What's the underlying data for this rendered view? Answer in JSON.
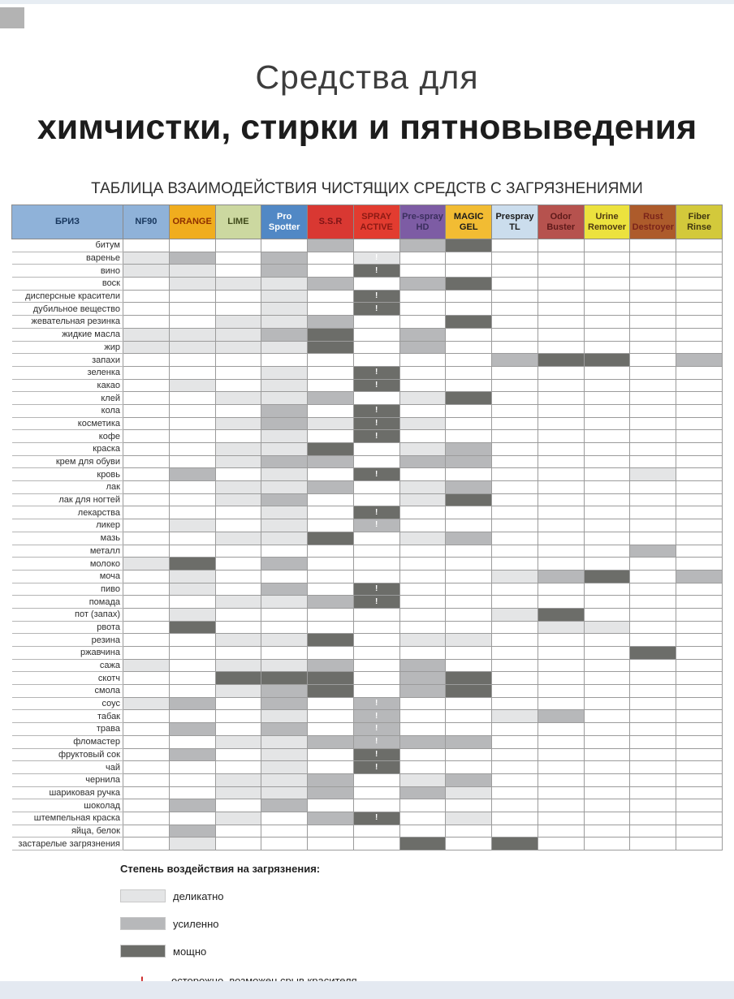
{
  "title": {
    "line1": "Средства для",
    "line2": "химчистки, стирки и пятновыведения"
  },
  "subtitle": "ТАБЛИЦА ВЗАИМОДЕЙСТВИЯ ЧИСТЯЩИХ СРЕДСТВ С ЗАГРЯЗНЕНИЯМИ",
  "table": {
    "row_header_label": "БРИЗ",
    "row_header_style": {
      "bg": "#8fb2d9",
      "fg": "#17365d"
    },
    "columns": [
      {
        "label": "NF90",
        "bg": "#8fb2d9",
        "fg": "#17365d"
      },
      {
        "label": "ORANGE",
        "bg": "#f0ad1e",
        "fg": "#8e2f00"
      },
      {
        "label": "LIME",
        "bg": "#ccd8a0",
        "fg": "#3f4a1a"
      },
      {
        "label": "Pro Spotter",
        "bg": "#5188c5",
        "fg": "#ffffff"
      },
      {
        "label": "S.S.R",
        "bg": "#d93832",
        "fg": "#7e1416"
      },
      {
        "label": "SPRAY ACTIVE",
        "bg": "#e23c30",
        "fg": "#8c1a14"
      },
      {
        "label": "Pre-spray HD",
        "bg": "#7d5ca4",
        "fg": "#3b2f5e"
      },
      {
        "label": "MAGIC GEL",
        "bg": "#f2bc33",
        "fg": "#1a1a1a"
      },
      {
        "label": "Prespray TL",
        "bg": "#cbdded",
        "fg": "#1a1a1a"
      },
      {
        "label": "Odor Buster",
        "bg": "#b6524e",
        "fg": "#5e1a1a"
      },
      {
        "label": "Urine Remover",
        "bg": "#ece23e",
        "fg": "#4f3a12"
      },
      {
        "label": "Rust Destroyer",
        "bg": "#ad5b2b",
        "fg": "#7a241a"
      },
      {
        "label": "Fiber Rinse",
        "bg": "#d3c93b",
        "fg": "#403710"
      }
    ],
    "level_colors": {
      "0": "#ffffff",
      "1": "#e4e5e6",
      "2": "#b7b8ba",
      "3": "#6c6d69"
    },
    "warn_mark": "!",
    "rows": [
      {
        "label": "битум",
        "cells": [
          "0",
          "0",
          "0",
          "0",
          "2",
          "0",
          "2",
          "3",
          "0",
          "0",
          "0",
          "0",
          "0"
        ]
      },
      {
        "label": "варенье",
        "cells": [
          "1",
          "2",
          "0",
          "2",
          "0",
          "1!",
          "0",
          "0",
          "0",
          "0",
          "0",
          "0",
          "0"
        ]
      },
      {
        "label": "вино",
        "cells": [
          "1",
          "1",
          "0",
          "2",
          "0",
          "3!",
          "0",
          "0",
          "0",
          "0",
          "0",
          "0",
          "0"
        ]
      },
      {
        "label": "воск",
        "cells": [
          "0",
          "1",
          "1",
          "1",
          "2",
          "0",
          "2",
          "3",
          "0",
          "0",
          "0",
          "0",
          "0"
        ]
      },
      {
        "label": "дисперсные красители",
        "cells": [
          "0",
          "0",
          "0",
          "1",
          "0",
          "3!",
          "0",
          "0",
          "0",
          "0",
          "0",
          "0",
          "0"
        ]
      },
      {
        "label": "дубильное вещество",
        "cells": [
          "0",
          "0",
          "0",
          "1",
          "0",
          "3!",
          "0",
          "0",
          "0",
          "0",
          "0",
          "0",
          "0"
        ]
      },
      {
        "label": "жевательная резинка",
        "cells": [
          "0",
          "0",
          "1",
          "1",
          "2",
          "0",
          "0",
          "3",
          "0",
          "0",
          "0",
          "0",
          "0"
        ]
      },
      {
        "label": "жидкие масла",
        "cells": [
          "1",
          "1",
          "1",
          "2",
          "3",
          "0",
          "2",
          "0",
          "0",
          "0",
          "0",
          "0",
          "0"
        ]
      },
      {
        "label": "жир",
        "cells": [
          "1",
          "1",
          "1",
          "1",
          "3",
          "0",
          "2",
          "0",
          "0",
          "0",
          "0",
          "0",
          "0"
        ]
      },
      {
        "label": "запахи",
        "cells": [
          "0",
          "0",
          "0",
          "0",
          "0",
          "0",
          "0",
          "0",
          "2",
          "3",
          "3",
          "0",
          "2"
        ]
      },
      {
        "label": "зеленка",
        "cells": [
          "0",
          "0",
          "0",
          "1",
          "0",
          "3!",
          "0",
          "0",
          "0",
          "0",
          "0",
          "0",
          "0"
        ]
      },
      {
        "label": "какао",
        "cells": [
          "0",
          "1",
          "0",
          "1",
          "0",
          "3!",
          "0",
          "0",
          "0",
          "0",
          "0",
          "0",
          "0"
        ]
      },
      {
        "label": "клей",
        "cells": [
          "0",
          "0",
          "1",
          "1",
          "2",
          "0",
          "1",
          "3",
          "0",
          "0",
          "0",
          "0",
          "0"
        ]
      },
      {
        "label": "кола",
        "cells": [
          "0",
          "0",
          "0",
          "2",
          "0",
          "3!",
          "0",
          "0",
          "0",
          "0",
          "0",
          "0",
          "0"
        ]
      },
      {
        "label": "косметика",
        "cells": [
          "0",
          "0",
          "1",
          "2",
          "1",
          "3!",
          "1",
          "0",
          "0",
          "0",
          "0",
          "0",
          "0"
        ]
      },
      {
        "label": "кофе",
        "cells": [
          "0",
          "0",
          "0",
          "1",
          "0",
          "3!",
          "0",
          "0",
          "0",
          "0",
          "0",
          "0",
          "0"
        ]
      },
      {
        "label": "краска",
        "cells": [
          "0",
          "0",
          "1",
          "1",
          "3",
          "0",
          "1",
          "2",
          "0",
          "0",
          "0",
          "0",
          "0"
        ]
      },
      {
        "label": "крем для обуви",
        "cells": [
          "0",
          "0",
          "1",
          "2",
          "2",
          "0",
          "2",
          "2",
          "0",
          "0",
          "0",
          "0",
          "0"
        ]
      },
      {
        "label": "кровь",
        "cells": [
          "0",
          "2",
          "0",
          "1",
          "0",
          "3!",
          "0",
          "0",
          "0",
          "0",
          "0",
          "1",
          "0"
        ]
      },
      {
        "label": "лак",
        "cells": [
          "0",
          "0",
          "1",
          "1",
          "2",
          "0",
          "1",
          "2",
          "0",
          "0",
          "0",
          "0",
          "0"
        ]
      },
      {
        "label": "лак для ногтей",
        "cells": [
          "0",
          "0",
          "1",
          "2",
          "0",
          "0",
          "1",
          "3",
          "0",
          "0",
          "0",
          "0",
          "0"
        ]
      },
      {
        "label": "лекарства",
        "cells": [
          "0",
          "0",
          "0",
          "1",
          "0",
          "3!",
          "0",
          "0",
          "0",
          "0",
          "0",
          "0",
          "0"
        ]
      },
      {
        "label": "ликер",
        "cells": [
          "0",
          "1",
          "0",
          "1",
          "0",
          "2!",
          "0",
          "0",
          "0",
          "0",
          "0",
          "0",
          "0"
        ]
      },
      {
        "label": "мазь",
        "cells": [
          "0",
          "0",
          "1",
          "1",
          "3",
          "0",
          "1",
          "2",
          "0",
          "0",
          "0",
          "0",
          "0"
        ]
      },
      {
        "label": "металл",
        "cells": [
          "0",
          "0",
          "0",
          "0",
          "0",
          "0",
          "0",
          "0",
          "0",
          "0",
          "0",
          "2",
          "0"
        ]
      },
      {
        "label": "молоко",
        "cells": [
          "1",
          "3",
          "0",
          "2",
          "0",
          "0",
          "0",
          "0",
          "0",
          "0",
          "0",
          "0",
          "0"
        ]
      },
      {
        "label": "моча",
        "cells": [
          "0",
          "1",
          "0",
          "0",
          "0",
          "0",
          "0",
          "0",
          "1",
          "2",
          "3",
          "0",
          "2"
        ]
      },
      {
        "label": "пиво",
        "cells": [
          "0",
          "1",
          "0",
          "2",
          "0",
          "3!",
          "0",
          "0",
          "0",
          "0",
          "0",
          "0",
          "0"
        ]
      },
      {
        "label": "помада",
        "cells": [
          "0",
          "0",
          "1",
          "1",
          "2",
          "3!",
          "0",
          "0",
          "0",
          "0",
          "0",
          "0",
          "0"
        ]
      },
      {
        "label": "пот (запах)",
        "cells": [
          "0",
          "1",
          "0",
          "0",
          "0",
          "0",
          "0",
          "0",
          "1",
          "3",
          "0",
          "0",
          "0"
        ]
      },
      {
        "label": "рвота",
        "cells": [
          "0",
          "3",
          "0",
          "0",
          "0",
          "0",
          "0",
          "0",
          "0",
          "1",
          "1",
          "0",
          "0"
        ]
      },
      {
        "label": "резина",
        "cells": [
          "0",
          "0",
          "1",
          "1",
          "3",
          "0",
          "1",
          "1",
          "0",
          "0",
          "0",
          "0",
          "0"
        ]
      },
      {
        "label": "ржавчина",
        "cells": [
          "0",
          "0",
          "0",
          "0",
          "0",
          "0",
          "0",
          "0",
          "0",
          "0",
          "0",
          "3",
          "0"
        ]
      },
      {
        "label": "сажа",
        "cells": [
          "1",
          "0",
          "1",
          "1",
          "2",
          "0",
          "2",
          "0",
          "0",
          "0",
          "0",
          "0",
          "0"
        ]
      },
      {
        "label": "скотч",
        "cells": [
          "0",
          "0",
          "3",
          "3",
          "3",
          "0",
          "2",
          "3",
          "0",
          "0",
          "0",
          "0",
          "0"
        ]
      },
      {
        "label": "смола",
        "cells": [
          "0",
          "0",
          "1",
          "2",
          "3",
          "0",
          "2",
          "3",
          "0",
          "0",
          "0",
          "0",
          "0"
        ]
      },
      {
        "label": "соус",
        "cells": [
          "1",
          "2",
          "0",
          "2",
          "0",
          "2!",
          "0",
          "0",
          "0",
          "0",
          "0",
          "0",
          "0"
        ]
      },
      {
        "label": "табак",
        "cells": [
          "0",
          "0",
          "0",
          "1",
          "0",
          "2!",
          "0",
          "0",
          "1",
          "2",
          "0",
          "0",
          "0"
        ]
      },
      {
        "label": "трава",
        "cells": [
          "0",
          "2",
          "0",
          "2",
          "0",
          "2!",
          "0",
          "0",
          "0",
          "0",
          "0",
          "0",
          "0"
        ]
      },
      {
        "label": "фломастер",
        "cells": [
          "0",
          "0",
          "1",
          "1",
          "2",
          "2!",
          "2",
          "2",
          "0",
          "0",
          "0",
          "0",
          "0"
        ]
      },
      {
        "label": "фруктовый сок",
        "cells": [
          "0",
          "2",
          "0",
          "1",
          "0",
          "3!",
          "0",
          "0",
          "0",
          "0",
          "0",
          "0",
          "0"
        ]
      },
      {
        "label": "чай",
        "cells": [
          "0",
          "0",
          "0",
          "1",
          "0",
          "3!",
          "0",
          "0",
          "0",
          "0",
          "0",
          "0",
          "0"
        ]
      },
      {
        "label": "чернила",
        "cells": [
          "0",
          "0",
          "1",
          "1",
          "2",
          "0",
          "1",
          "2",
          "0",
          "0",
          "0",
          "0",
          "0"
        ]
      },
      {
        "label": "шариковая ручка",
        "cells": [
          "0",
          "0",
          "1",
          "1",
          "2",
          "0",
          "2",
          "1",
          "0",
          "0",
          "0",
          "0",
          "0"
        ]
      },
      {
        "label": "шоколад",
        "cells": [
          "0",
          "2",
          "0",
          "2",
          "0",
          "0",
          "0",
          "0",
          "0",
          "0",
          "0",
          "0",
          "0"
        ]
      },
      {
        "label": "штемпельная краска",
        "cells": [
          "0",
          "0",
          "1",
          "0",
          "2",
          "3!",
          "0",
          "1",
          "0",
          "0",
          "0",
          "0",
          "0"
        ]
      },
      {
        "label": "яйца, белок",
        "cells": [
          "0",
          "2",
          "0",
          "0",
          "0",
          "0",
          "0",
          "0",
          "0",
          "0",
          "0",
          "0",
          "0"
        ]
      },
      {
        "label": "застарелые загрязнения",
        "cells": [
          "0",
          "1",
          "0",
          "0",
          "0",
          "0",
          "3",
          "0",
          "3",
          "0",
          "0",
          "0",
          "0"
        ]
      }
    ]
  },
  "legend": {
    "title": "Степень воздействия на загрязнения:",
    "items": [
      {
        "level": "1",
        "label": "деликатно"
      },
      {
        "level": "2",
        "label": "усиленно"
      },
      {
        "level": "3",
        "label": "мощно"
      }
    ],
    "warn": {
      "mark": "!",
      "color": "#cc2020",
      "label": "осторожно, возможен срыв красителя"
    }
  }
}
